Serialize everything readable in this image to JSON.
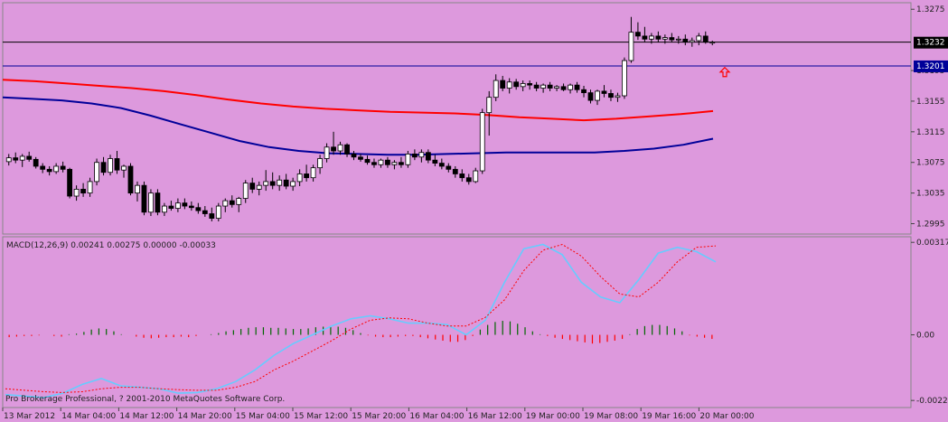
{
  "colors": {
    "background": "#dd99dd",
    "bull_candle": "#ffffff",
    "bear_candle": "#000000",
    "ma_red": "#ff0000",
    "ma_blue": "#000099",
    "macd_line": "#66ccff",
    "signal_line": "#ff0000",
    "hist_positive": "#006600",
    "hist_negative": "#ff0000",
    "price_line_tag": "#000000",
    "level_line_tag": "#000099"
  },
  "icons": {
    "arrow": "up-arrow-icon"
  },
  "chart_data": [
    {
      "type": "candlestick",
      "title": "",
      "price_axis": {
        "ticks": [
          "1.3275",
          "1.3195",
          "1.3155",
          "1.3115",
          "1.3075",
          "1.3035",
          "1.2995"
        ],
        "ylim": [
          1.2985,
          1.328
        ]
      },
      "price_tags": [
        {
          "name": "current_price",
          "label": "1.3232",
          "value": 1.3232
        },
        {
          "name": "level",
          "label": "1.3201",
          "value": 1.3201
        }
      ],
      "arrow_signal": {
        "value": 1.3193,
        "direction": "up"
      },
      "candles": [
        [
          1.3076,
          1.3086,
          1.3071,
          1.3081
        ],
        [
          1.3081,
          1.3088,
          1.3074,
          1.3078
        ],
        [
          1.3078,
          1.3086,
          1.3069,
          1.3083
        ],
        [
          1.3083,
          1.3089,
          1.3076,
          1.3079
        ],
        [
          1.3079,
          1.3082,
          1.3067,
          1.307
        ],
        [
          1.307,
          1.3074,
          1.3061,
          1.3066
        ],
        [
          1.3066,
          1.307,
          1.3058,
          1.3063
        ],
        [
          1.3063,
          1.3074,
          1.306,
          1.307
        ],
        [
          1.307,
          1.3076,
          1.3062,
          1.3066
        ],
        [
          1.3066,
          1.3068,
          1.3028,
          1.3031
        ],
        [
          1.3031,
          1.3045,
          1.3025,
          1.304
        ],
        [
          1.304,
          1.3048,
          1.303,
          1.3035
        ],
        [
          1.3035,
          1.3055,
          1.303,
          1.305
        ],
        [
          1.305,
          1.308,
          1.3045,
          1.3075
        ],
        [
          1.3075,
          1.3082,
          1.3058,
          1.3062
        ],
        [
          1.3062,
          1.3085,
          1.3058,
          1.308
        ],
        [
          1.308,
          1.309,
          1.306,
          1.3065
        ],
        [
          1.3065,
          1.3072,
          1.3055,
          1.307
        ],
        [
          1.307,
          1.3074,
          1.3032,
          1.3035
        ],
        [
          1.3035,
          1.305,
          1.3024,
          1.3045
        ],
        [
          1.3045,
          1.305,
          1.3006,
          1.301
        ],
        [
          1.301,
          1.304,
          1.3005,
          1.3035
        ],
        [
          1.3035,
          1.304,
          1.3006,
          1.301
        ],
        [
          1.301,
          1.3022,
          1.3005,
          1.3018
        ],
        [
          1.3018,
          1.3025,
          1.3012,
          1.3015
        ],
        [
          1.3015,
          1.3028,
          1.301,
          1.3022
        ],
        [
          1.3022,
          1.3028,
          1.3014,
          1.3018
        ],
        [
          1.3018,
          1.3024,
          1.3012,
          1.3016
        ],
        [
          1.3016,
          1.3022,
          1.3008,
          1.3012
        ],
        [
          1.3012,
          1.3018,
          1.3004,
          1.3008
        ],
        [
          1.3008,
          1.3016,
          1.2998,
          1.3002
        ],
        [
          1.3002,
          1.3022,
          1.2998,
          1.3018
        ],
        [
          1.3018,
          1.3028,
          1.301,
          1.3025
        ],
        [
          1.3025,
          1.3032,
          1.3016,
          1.302
        ],
        [
          1.302,
          1.303,
          1.301,
          1.3028
        ],
        [
          1.3028,
          1.3052,
          1.3022,
          1.3048
        ],
        [
          1.3048,
          1.3055,
          1.3035,
          1.304
        ],
        [
          1.304,
          1.305,
          1.3032,
          1.3045
        ],
        [
          1.3045,
          1.3065,
          1.3038,
          1.305
        ],
        [
          1.305,
          1.3062,
          1.304,
          1.3045
        ],
        [
          1.3045,
          1.3058,
          1.3038,
          1.3052
        ],
        [
          1.3052,
          1.306,
          1.304,
          1.3044
        ],
        [
          1.3044,
          1.3055,
          1.3038,
          1.305
        ],
        [
          1.305,
          1.3066,
          1.3044,
          1.306
        ],
        [
          1.306,
          1.3072,
          1.305,
          1.3055
        ],
        [
          1.3055,
          1.3072,
          1.305,
          1.3068
        ],
        [
          1.3068,
          1.3085,
          1.306,
          1.308
        ],
        [
          1.308,
          1.31,
          1.3075,
          1.3095
        ],
        [
          1.3095,
          1.3115,
          1.3085,
          1.309
        ],
        [
          1.309,
          1.3102,
          1.3085,
          1.3098
        ],
        [
          1.3098,
          1.31,
          1.3082,
          1.3086
        ],
        [
          1.3086,
          1.309,
          1.3078,
          1.3082
        ],
        [
          1.3082,
          1.3086,
          1.3076,
          1.3079
        ],
        [
          1.3079,
          1.3084,
          1.3072,
          1.3075
        ],
        [
          1.3075,
          1.308,
          1.3068,
          1.3072
        ],
        [
          1.3072,
          1.308,
          1.3068,
          1.3078
        ],
        [
          1.3078,
          1.3082,
          1.3068,
          1.3072
        ],
        [
          1.3072,
          1.3078,
          1.3066,
          1.3075
        ],
        [
          1.3075,
          1.3082,
          1.3068,
          1.3072
        ],
        [
          1.3072,
          1.309,
          1.3068,
          1.3086
        ],
        [
          1.3086,
          1.3092,
          1.3078,
          1.3082
        ],
        [
          1.3082,
          1.3092,
          1.3075,
          1.3088
        ],
        [
          1.3088,
          1.3092,
          1.3074,
          1.3078
        ],
        [
          1.3078,
          1.3085,
          1.307,
          1.3074
        ],
        [
          1.3074,
          1.308,
          1.3066,
          1.307
        ],
        [
          1.307,
          1.3074,
          1.3062,
          1.3066
        ],
        [
          1.3066,
          1.307,
          1.3055,
          1.306
        ],
        [
          1.306,
          1.3066,
          1.305,
          1.3055
        ],
        [
          1.3055,
          1.306,
          1.3046,
          1.305
        ],
        [
          1.305,
          1.3068,
          1.3048,
          1.3064
        ],
        [
          1.3064,
          1.3145,
          1.306,
          1.314
        ],
        [
          1.314,
          1.3168,
          1.311,
          1.316
        ],
        [
          1.316,
          1.319,
          1.3155,
          1.3182
        ],
        [
          1.3182,
          1.3188,
          1.3168,
          1.3172
        ],
        [
          1.3172,
          1.3185,
          1.3165,
          1.318
        ],
        [
          1.318,
          1.3184,
          1.317,
          1.3174
        ],
        [
          1.3174,
          1.3182,
          1.3168,
          1.3178
        ],
        [
          1.3178,
          1.3182,
          1.317,
          1.3176
        ],
        [
          1.3176,
          1.318,
          1.3168,
          1.3172
        ],
        [
          1.3172,
          1.3178,
          1.3166,
          1.3176
        ],
        [
          1.3176,
          1.318,
          1.3168,
          1.3172
        ],
        [
          1.3172,
          1.3176,
          1.3168,
          1.3174
        ],
        [
          1.3174,
          1.3178,
          1.3168,
          1.317
        ],
        [
          1.317,
          1.3178,
          1.3165,
          1.3176
        ],
        [
          1.3176,
          1.318,
          1.3166,
          1.317
        ],
        [
          1.317,
          1.3175,
          1.316,
          1.3166
        ],
        [
          1.3166,
          1.317,
          1.3152,
          1.3156
        ],
        [
          1.3156,
          1.317,
          1.315,
          1.3168
        ],
        [
          1.3168,
          1.3176,
          1.316,
          1.3165
        ],
        [
          1.3165,
          1.317,
          1.3155,
          1.316
        ],
        [
          1.316,
          1.3166,
          1.3154,
          1.3162
        ],
        [
          1.3162,
          1.3212,
          1.3158,
          1.3208
        ],
        [
          1.3208,
          1.3265,
          1.3205,
          1.3245
        ],
        [
          1.3245,
          1.3258,
          1.3235,
          1.324
        ],
        [
          1.324,
          1.3252,
          1.3232,
          1.3236
        ],
        [
          1.3236,
          1.3244,
          1.323,
          1.324
        ],
        [
          1.324,
          1.3246,
          1.3232,
          1.3236
        ],
        [
          1.3236,
          1.3242,
          1.323,
          1.3238
        ],
        [
          1.3238,
          1.3244,
          1.3232,
          1.3235
        ],
        [
          1.3235,
          1.324,
          1.323,
          1.3236
        ],
        [
          1.3236,
          1.3242,
          1.3228,
          1.3232
        ],
        [
          1.3232,
          1.3238,
          1.3226,
          1.3234
        ],
        [
          1.3234,
          1.3244,
          1.3228,
          1.324
        ],
        [
          1.324,
          1.3246,
          1.323,
          1.3232
        ],
        [
          1.3232,
          1.3234,
          1.3228,
          1.3232
        ]
      ],
      "moving_averages": [
        {
          "color": "#ff0000",
          "values": [
            1.3183,
            1.3181,
            1.3178,
            1.3175,
            1.3172,
            1.3168,
            1.3163,
            1.3157,
            1.3152,
            1.3148,
            1.3145,
            1.3143,
            1.3141,
            1.314,
            1.3139,
            1.3137,
            1.3134,
            1.3132,
            1.313,
            1.3132,
            1.3135,
            1.3138,
            1.3142
          ]
        },
        {
          "color": "#000099",
          "values": [
            1.316,
            1.3158,
            1.3156,
            1.3152,
            1.3146,
            1.3136,
            1.3125,
            1.3114,
            1.3103,
            1.3095,
            1.309,
            1.3087,
            1.3086,
            1.3085,
            1.3085,
            1.3086,
            1.3087,
            1.3088,
            1.3088,
            1.3088,
            1.3088,
            1.309,
            1.3093,
            1.3098,
            1.3106
          ]
        }
      ]
    },
    {
      "type": "line",
      "title": "MACD(12,26,9) 0.00241 0.00275 0.00000 -0.00033",
      "axis_ticks": [
        "0.00317",
        "0.00",
        "-0.00225"
      ],
      "ylim": [
        -0.0024,
        0.0033
      ],
      "series": [
        {
          "color": "#66ccff",
          "values": [
            -0.00205,
            -0.0021,
            -0.00215,
            -0.002,
            -0.0017,
            -0.0015,
            -0.00175,
            -0.0018,
            -0.00185,
            -0.002,
            -0.00198,
            -0.00185,
            -0.0016,
            -0.0012,
            -0.0007,
            -0.0003,
            0.0,
            0.0003,
            0.00055,
            0.00065,
            0.00055,
            0.0004,
            0.0004,
            0.00035,
            0.0,
            0.0005,
            0.0018,
            0.00295,
            0.0031,
            0.00275,
            0.0018,
            0.0013,
            0.0011,
            0.0019,
            0.0028,
            0.003,
            0.00285,
            0.0025
          ]
        },
        {
          "color": "#ff0000",
          "values": [
            -0.00185,
            -0.0019,
            -0.00195,
            -0.00198,
            -0.00195,
            -0.00185,
            -0.0018,
            -0.0018,
            -0.00185,
            -0.00188,
            -0.0019,
            -0.0019,
            -0.0018,
            -0.0016,
            -0.0012,
            -0.0009,
            -0.00055,
            -0.0002,
            0.0002,
            0.0005,
            0.00058,
            0.00055,
            0.0004,
            0.0003,
            0.0003,
            0.0006,
            0.0012,
            0.0022,
            0.0029,
            0.0031,
            0.0027,
            0.002,
            0.0014,
            0.0013,
            0.0018,
            0.0025,
            0.003,
            0.00305
          ]
        }
      ],
      "histogram": [
        -8e-05,
        -6e-05,
        -4e-05,
        -4e-05,
        -2e-05,
        0.0,
        -4e-05,
        -6e-05,
        2e-05,
        4e-05,
        0.0001,
        0.00018,
        0.00022,
        0.0002,
        0.00012,
        2e-05,
        0.0,
        -6e-05,
        -0.0001,
        -0.00012,
        -0.0001,
        -8e-05,
        -8e-05,
        -6e-05,
        -8e-05,
        -4e-05,
        0.0,
        2e-05,
        6e-05,
        0.00012,
        0.00016,
        0.0002,
        0.00024,
        0.00026,
        0.00026,
        0.00024,
        0.00024,
        0.00022,
        0.0002,
        0.0002,
        0.00022,
        0.00026,
        0.00028,
        0.0003,
        0.00028,
        0.00024,
        0.00016,
        6e-05,
        -2e-05,
        -6e-05,
        -8e-05,
        -8e-05,
        -6e-05,
        -4e-05,
        -4e-05,
        -8e-05,
        -0.00012,
        -0.00016,
        -0.0002,
        -0.00024,
        -0.00024,
        -0.00018,
        -4e-05,
        0.00018,
        0.00034,
        0.00044,
        0.00048,
        0.00046,
        0.00038,
        0.00026,
        0.00012,
        2e-05,
        -4e-05,
        -0.0001,
        -0.00014,
        -0.00018,
        -0.00022,
        -0.00026,
        -0.0003,
        -0.00028,
        -0.00024,
        -0.0002,
        -0.00014,
        2e-05,
        0.0002,
        0.0003,
        0.00034,
        0.00034,
        0.0003,
        0.00022,
        0.00012,
        -2e-05,
        -6e-05,
        -0.0001,
        -0.00014
      ],
      "copyright": "Pro Brokerage Professional, ? 2001-2010 MetaQuotes Software Corp."
    }
  ],
  "time_axis": [
    "13 Mar 2012",
    "14 Mar 04:00",
    "14 Mar 12:00",
    "14 Mar 20:00",
    "15 Mar 04:00",
    "15 Mar 12:00",
    "15 Mar 20:00",
    "16 Mar 04:00",
    "16 Mar 12:00",
    "19 Mar 00:00",
    "19 Mar 08:00",
    "19 Mar 16:00",
    "20 Mar 00:00"
  ]
}
